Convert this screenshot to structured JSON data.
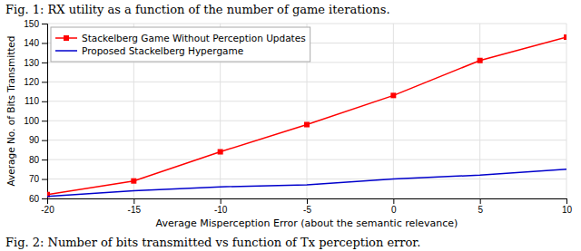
{
  "chart_data": {
    "type": "line",
    "title": "Fig. 1: RX utility as a function of the number of game iterations.",
    "annotations": [
      "Fig. 2: Number of bits transmitted vs function of Tx perception error."
    ],
    "x_label": "Average Misperception Error (about the semantic relevance)",
    "y_label": "Average No. of Bits Transmitted",
    "x": [
      -20,
      -15,
      -10,
      -5,
      0,
      5,
      10
    ],
    "series": [
      {
        "name": "Stackelberg Game Without Perception Updates",
        "color": "#ff0000",
        "marker": "square",
        "values": [
          62,
          69,
          84,
          98,
          113,
          131,
          143
        ]
      },
      {
        "name": "Proposed Stackelberg Hypergame",
        "color": "#0000cc",
        "marker": "none",
        "values": [
          61,
          64,
          66,
          67,
          70,
          72,
          75
        ]
      }
    ],
    "xlim": [
      -20,
      10
    ],
    "ylim": [
      60,
      150
    ],
    "xticks": [
      -20,
      -15,
      -10,
      -5,
      0,
      5,
      10
    ],
    "yticks": [
      60,
      70,
      80,
      90,
      100,
      110,
      120,
      130,
      140,
      150
    ],
    "grid": true,
    "legend": "upper-left"
  }
}
